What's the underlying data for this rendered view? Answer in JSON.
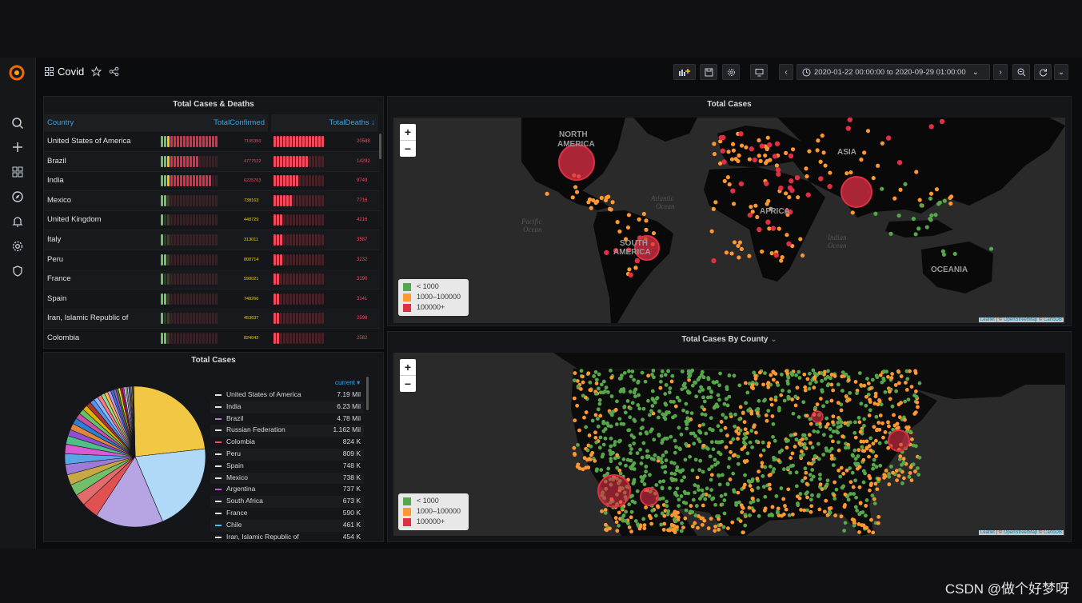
{
  "watermark": "CSDN @做个好梦呀",
  "header": {
    "title": "Covid",
    "time_range": "2020-01-22 00:00:00 to 2020-09-29 01:00:00"
  },
  "icons": {
    "logo": "grafana-logo",
    "sidebar": [
      "search-icon",
      "plus-icon",
      "dashboards-icon",
      "explore-icon",
      "bell-icon",
      "gear-icon",
      "shield-icon"
    ],
    "toolbar": [
      "add-panel-icon",
      "save-icon",
      "settings-icon",
      "tv-mode-icon",
      "chevron-left-icon",
      "clock-icon",
      "chevron-right-icon",
      "zoom-out-icon",
      "refresh-icon",
      "chevron-down-icon"
    ]
  },
  "colors": {
    "green": "#56a64b",
    "orange": "#ff9830",
    "red": "#e02f44",
    "yellow": "#f2cc0c",
    "blue": "#33a2e5"
  },
  "table_panel": {
    "title": "Total Cases & Deaths",
    "columns": [
      "Country",
      "TotalConfirmed",
      "TotalDeaths ↓"
    ],
    "rows": [
      {
        "country": "United States of America",
        "confirmed": "7195350",
        "deaths": "20588",
        "conf_frac": 1.0,
        "death_frac": 1.0
      },
      {
        "country": "Brazil",
        "confirmed": "4777522",
        "deaths": "14292",
        "conf_frac": 0.66,
        "death_frac": 0.7
      },
      {
        "country": "India",
        "confirmed": "6225763",
        "deaths": "9749",
        "conf_frac": 0.87,
        "death_frac": 0.47
      },
      {
        "country": "Mexico",
        "confirmed": "738163",
        "deaths": "7716",
        "conf_frac": 0.1,
        "death_frac": 0.37
      },
      {
        "country": "United Kingdom",
        "confirmed": "448729",
        "deaths": "4216",
        "conf_frac": 0.06,
        "death_frac": 0.2
      },
      {
        "country": "Italy",
        "confirmed": "313011",
        "deaths": "3587",
        "conf_frac": 0.04,
        "death_frac": 0.17
      },
      {
        "country": "Peru",
        "confirmed": "808714",
        "deaths": "3232",
        "conf_frac": 0.11,
        "death_frac": 0.16
      },
      {
        "country": "France",
        "confirmed": "590021",
        "deaths": "3190",
        "conf_frac": 0.08,
        "death_frac": 0.15
      },
      {
        "country": "Spain",
        "confirmed": "748266",
        "deaths": "3141",
        "conf_frac": 0.1,
        "death_frac": 0.15
      },
      {
        "country": "Iran, Islamic Republic of",
        "confirmed": "453637",
        "deaths": "2598",
        "conf_frac": 0.06,
        "death_frac": 0.12
      },
      {
        "country": "Colombia",
        "confirmed": "824042",
        "deaths": "2582",
        "conf_frac": 0.11,
        "death_frac": 0.12
      }
    ]
  },
  "pie_panel": {
    "title": "Total Cases",
    "legend_header": "current ▾",
    "items": [
      {
        "name": "United States of America",
        "value": "7.19 Mil",
        "color": "#e6e6e6"
      },
      {
        "name": "India",
        "value": "6.23 Mil",
        "color": "#e6e6e6"
      },
      {
        "name": "Brazil",
        "value": "4.78 Mil",
        "color": "#b877d9"
      },
      {
        "name": "Russian Federation",
        "value": "1.162 Mil",
        "color": "#e6e6e6"
      },
      {
        "name": "Colombia",
        "value": "824 K",
        "color": "#f2495c"
      },
      {
        "name": "Peru",
        "value": "809 K",
        "color": "#e6e6e6"
      },
      {
        "name": "Spain",
        "value": "748 K",
        "color": "#e6e6e6"
      },
      {
        "name": "Mexico",
        "value": "738 K",
        "color": "#e6e6e6"
      },
      {
        "name": "Argentina",
        "value": "737 K",
        "color": "#ca51d6"
      },
      {
        "name": "South Africa",
        "value": "673 K",
        "color": "#e6e6e6"
      },
      {
        "name": "France",
        "value": "590 K",
        "color": "#e6e6e6"
      },
      {
        "name": "Chile",
        "value": "461 K",
        "color": "#5fb4e8"
      },
      {
        "name": "Iran, Islamic Republic of",
        "value": "454 K",
        "color": "#e6e6e6"
      }
    ],
    "slices": [
      {
        "value": 7.19,
        "color": "#f2c744"
      },
      {
        "value": 6.23,
        "color": "#b0d9f8"
      },
      {
        "value": 4.78,
        "color": "#b7a4e3"
      },
      {
        "value": 1.162,
        "color": "#e05252"
      },
      {
        "value": 0.824,
        "color": "#e36b6b"
      },
      {
        "value": 0.809,
        "color": "#73bf69"
      },
      {
        "value": 0.748,
        "color": "#c8a845"
      },
      {
        "value": 0.738,
        "color": "#9e7bd6"
      },
      {
        "value": 0.737,
        "color": "#5aa5e6"
      },
      {
        "value": 0.673,
        "color": "#d85ad4"
      },
      {
        "value": 0.59,
        "color": "#4fbf88"
      },
      {
        "value": 0.461,
        "color": "#8e4fd0"
      },
      {
        "value": 0.454,
        "color": "#e0863c"
      },
      {
        "value": 0.42,
        "color": "#2d7fd6"
      },
      {
        "value": 0.4,
        "color": "#c94fa6"
      },
      {
        "value": 0.38,
        "color": "#6abf69"
      },
      {
        "value": 0.36,
        "color": "#e0b400"
      },
      {
        "value": 0.34,
        "color": "#b0342e"
      },
      {
        "value": 0.32,
        "color": "#5794f2"
      },
      {
        "value": 0.3,
        "color": "#8ab8ff"
      },
      {
        "value": 0.28,
        "color": "#ff7383"
      },
      {
        "value": 0.26,
        "color": "#96d98d"
      },
      {
        "value": 0.24,
        "color": "#ffb357"
      },
      {
        "value": 0.22,
        "color": "#ca95e5"
      },
      {
        "value": 0.2,
        "color": "#3274d9"
      },
      {
        "value": 0.18,
        "color": "#a352cc"
      },
      {
        "value": 0.16,
        "color": "#37872d"
      },
      {
        "value": 0.15,
        "color": "#fade2a"
      },
      {
        "value": 0.14,
        "color": "#c4162a"
      },
      {
        "value": 0.13,
        "color": "#8f3bb8"
      },
      {
        "value": 0.12,
        "color": "#ffffff"
      },
      {
        "value": 0.11,
        "color": "#9a9a9a"
      },
      {
        "value": 0.1,
        "color": "#c0d8ff"
      },
      {
        "value": 0.09,
        "color": "#705da0"
      },
      {
        "value": 0.08,
        "color": "#e0752d"
      },
      {
        "value": 0.07,
        "color": "#badff4"
      },
      {
        "value": 0.06,
        "color": "#508642"
      },
      {
        "value": 0.05,
        "color": "#cca300"
      }
    ]
  },
  "world_map": {
    "title": "Total Cases",
    "labels": {
      "na": "NORTH",
      "na2": "AMERICA",
      "sa": "SOUTH",
      "sa2": "AMERICA",
      "asia": "ASIA",
      "africa": "AFRICA",
      "oceania": "OCEANIA",
      "atlantic": "Atlantic",
      "atlantic2": "Ocean",
      "pacific": "Pacific",
      "pacific2": "Ocean",
      "indian": "Indian",
      "indian2": "Ocean"
    }
  },
  "county_map": {
    "title": "Total Cases By County"
  },
  "map_common": {
    "zoom_in": "+",
    "zoom_out": "−",
    "legend": [
      {
        "label": "< 1000",
        "color": "#56a64b"
      },
      {
        "label": "1000–100000",
        "color": "#ff9830"
      },
      {
        "label": "100000+",
        "color": "#e02f44"
      }
    ],
    "attribution": {
      "leaflet": "Leaflet",
      "sep1": " | © ",
      "osm": "OpenStreetMap",
      "sep2": " © ",
      "carto": "CartoDB"
    }
  }
}
